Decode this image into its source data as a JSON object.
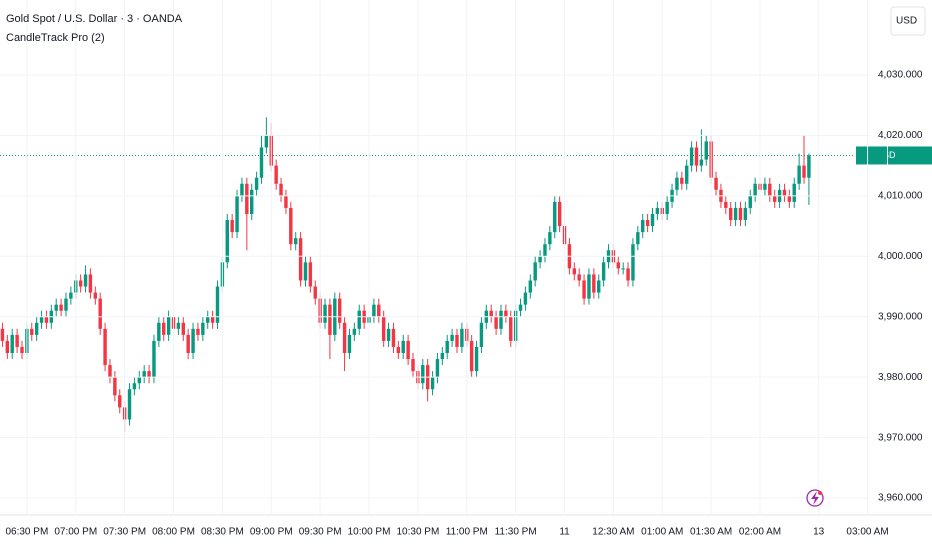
{
  "header": {
    "title": "Gold Spot / U.S. Dollar · 3 · OANDA",
    "indicator": "CandleTrack Pro (2)",
    "currency": "USD"
  },
  "chart_data": {
    "type": "candlestick",
    "up_color": "#089981",
    "down_color": "#f23645",
    "grid": true,
    "ylim": [
      3957.2,
      4042.4
    ],
    "xlim": [
      -0.5,
      177.5
    ],
    "yticks": [
      {
        "value": 3960,
        "label": "3,960.000"
      },
      {
        "value": 3970,
        "label": "3,970.000"
      },
      {
        "value": 3980,
        "label": "3,980.000"
      },
      {
        "value": 3990,
        "label": "3,990.000"
      },
      {
        "value": 4000,
        "label": "4,000.000"
      },
      {
        "value": 4010,
        "label": "4,010.000"
      },
      {
        "value": 4020,
        "label": "4,020.000"
      },
      {
        "value": 4030,
        "label": "4,030.000"
      }
    ],
    "xticks": [
      {
        "value": 5,
        "label": "06:30 PM"
      },
      {
        "value": 15,
        "label": "07:00 PM"
      },
      {
        "value": 25,
        "label": "07:30 PM"
      },
      {
        "value": 35,
        "label": "08:00 PM"
      },
      {
        "value": 45,
        "label": "08:30 PM"
      },
      {
        "value": 55,
        "label": "09:00 PM"
      },
      {
        "value": 65,
        "label": "09:30 PM"
      },
      {
        "value": 75,
        "label": "10:00 PM"
      },
      {
        "value": 85,
        "label": "10:30 PM"
      },
      {
        "value": 95,
        "label": "11:00 PM"
      },
      {
        "value": 105,
        "label": "11:30 PM"
      },
      {
        "value": 115,
        "label": "11"
      },
      {
        "value": 125,
        "label": "12:30 AM"
      },
      {
        "value": 135,
        "label": "01:00 AM"
      },
      {
        "value": 145,
        "label": "01:30 AM"
      },
      {
        "value": 155,
        "label": "02:00 AM"
      },
      {
        "value": 167,
        "label": "13"
      },
      {
        "value": 177,
        "label": "03:00 AM"
      }
    ],
    "last_price": {
      "symbol": "XAUUSD",
      "value": 4016.68,
      "label": "4,016.680"
    },
    "open": [
      3988,
      3986,
      3984,
      3987,
      3985,
      3984,
      3988,
      3987,
      3989,
      3990,
      3989,
      3991,
      3992,
      3991,
      3993,
      3994,
      3996,
      3995,
      3997,
      3994,
      3993,
      3988,
      3982,
      3980,
      3977,
      3975,
      3973,
      3978,
      3979,
      3980,
      3981,
      3980,
      3986,
      3989,
      3987,
      3990,
      3988,
      3989,
      3987,
      3984,
      3988,
      3987,
      3989,
      3990,
      3989,
      3995,
      3999,
      4006,
      4004,
      4010,
      4012,
      4007,
      4011,
      4013,
      4018,
      4020,
      4015,
      4012,
      4010,
      4008,
      4002,
      4003,
      3996,
      3999,
      3995,
      3993,
      3989,
      3992,
      3987,
      3993,
      3989,
      3984,
      3987,
      3988,
      3991,
      3989,
      3990,
      3992,
      3990,
      3986,
      3988,
      3985,
      3984,
      3986,
      3983,
      3981,
      3979,
      3982,
      3978,
      3980,
      3983,
      3984,
      3986,
      3987,
      3985,
      3988,
      3986,
      3981,
      3985,
      3989,
      3991,
      3990,
      3988,
      3991,
      3990,
      3986,
      3991,
      3992,
      3994,
      3996,
      3999,
      4000,
      4002,
      4004,
      4009,
      4005,
      4002,
      3998,
      3997,
      3996,
      3993,
      3997,
      3994,
      3996,
      3999,
      4001,
      3999,
      3998,
      3998,
      3996,
      4002,
      4004,
      4006,
      4005,
      4007,
      4008,
      4007,
      4009,
      4011,
      4013,
      4012,
      4015,
      4018,
      4015,
      4016,
      4019,
      4013,
      4011,
      4009,
      4008,
      4006,
      4008,
      4006,
      4008,
      4010,
      4012,
      4011,
      4012,
      4010,
      4009,
      4011,
      4010,
      4009,
      4012,
      4015,
      4013
    ],
    "high": [
      3989,
      3987,
      3988,
      3988,
      3986,
      3989,
      3989,
      3990,
      3991,
      3991,
      3992,
      3993,
      3993,
      3994,
      3995,
      3997,
      3997,
      3998.5,
      3998,
      3995,
      3994,
      3989,
      3983,
      3981,
      3978,
      3976,
      3979,
      3980,
      3981,
      3982,
      3982,
      3987,
      3990,
      3990,
      3991,
      3991,
      3990,
      3990,
      3988,
      3989,
      3989,
      3990,
      3991,
      3991,
      3996,
      4000,
      4007,
      4007,
      4011,
      4013,
      4013,
      4012,
      4014,
      4020,
      4023,
      4022,
      4016,
      4013,
      4011,
      4009,
      4004,
      4004,
      4000,
      4000,
      3996,
      3994,
      3993,
      3993,
      3994,
      3994,
      3990,
      3988,
      3989,
      3992,
      3992,
      3991,
      3993,
      3993,
      3991,
      3989,
      3989,
      3986,
      3987,
      3987,
      3984,
      3982,
      3983,
      3983,
      3981,
      3984,
      3985,
      3987,
      3988,
      3988,
      3989,
      3989,
      3987,
      3986,
      3990,
      3992,
      3992,
      3991,
      3992,
      3992,
      3991,
      3992,
      3993,
      3995,
      3997,
      4000,
      4001,
      4003,
      4005,
      4010,
      4010,
      4006,
      4003,
      3999,
      3998,
      3997,
      3998,
      3998,
      3997,
      4000,
      4002,
      4002,
      4000,
      3999,
      3999,
      4003,
      4005,
      4007,
      4007,
      4008,
      4009,
      4009,
      4010,
      4012,
      4014,
      4014,
      4016,
      4019,
      4019,
      4021,
      4020,
      4020,
      4014,
      4012,
      4010,
      4009,
      4009,
      4009,
      4009,
      4011,
      4013,
      4013,
      4013,
      4013,
      4011,
      4012,
      4012,
      4011,
      4013,
      4017,
      4020,
      4017
    ],
    "low": [
      3985,
      3983,
      3983,
      3984,
      3983,
      3983,
      3986,
      3986,
      3988,
      3988,
      3988,
      3990,
      3990,
      3990,
      3992,
      3993,
      3994,
      3994,
      3993,
      3992,
      3987,
      3981,
      3979,
      3976,
      3974,
      3971,
      3972,
      3977,
      3978,
      3979,
      3979,
      3979,
      3985,
      3986,
      3986,
      3987,
      3987,
      3986,
      3983,
      3983,
      3986,
      3986,
      3988,
      3988,
      3988,
      3994,
      3998,
      4003,
      4003,
      4009,
      4001,
      4006,
      4010,
      4012,
      4017,
      4014,
      4011,
      4009,
      4007,
      4001,
      4001,
      3995,
      3995,
      3994,
      3992,
      3988,
      3988,
      3983,
      3986,
      3988,
      3981,
      3983,
      3986,
      3987,
      3988,
      3988,
      3989,
      3989,
      3985,
      3985,
      3984,
      3983,
      3983,
      3982,
      3980,
      3978,
      3978,
      3976,
      3977,
      3979,
      3982,
      3983,
      3985,
      3984,
      3984,
      3985,
      3980,
      3980,
      3984,
      3988,
      3989,
      3987,
      3987,
      3989,
      3985,
      3985,
      3990,
      3991,
      3993,
      3995,
      3998,
      3999,
      4001,
      4003,
      4004,
      4001,
      3997,
      3996,
      3995,
      3992,
      3992,
      3993,
      3993,
      3995,
      3998,
      3998,
      3997,
      3997,
      3995,
      3995,
      4001,
      4003,
      4004,
      4004,
      4006,
      4006,
      4006,
      4008,
      4010,
      4011,
      4011,
      4014,
      4014,
      4014,
      4015,
      4012,
      4010,
      4008,
      4007,
      4005,
      4005,
      4005,
      4005,
      4007,
      4009,
      4010,
      4010,
      4009,
      4008,
      4008,
      4009,
      4008,
      4008,
      4011,
      4012,
      4008.5
    ],
    "close": [
      3986,
      3984,
      3987,
      3985,
      3984,
      3988,
      3987,
      3989,
      3990,
      3989,
      3991,
      3992,
      3991,
      3993,
      3994,
      3996,
      3995,
      3997,
      3994,
      3993,
      3988,
      3982,
      3980,
      3977,
      3975,
      3973,
      3978,
      3979,
      3980,
      3981,
      3980,
      3986,
      3989,
      3987,
      3990,
      3988,
      3989,
      3987,
      3984,
      3988,
      3987,
      3989,
      3990,
      3989,
      3995,
      3999,
      4006,
      4004,
      4010,
      4012,
      4007,
      4011,
      4013,
      4018,
      4020,
      4015,
      4012,
      4010,
      4008,
      4002,
      4003,
      3996,
      3999,
      3995,
      3993,
      3989,
      3992,
      3987,
      3993,
      3989,
      3984,
      3987,
      3988,
      3991,
      3989,
      3990,
      3992,
      3990,
      3986,
      3988,
      3985,
      3984,
      3986,
      3983,
      3981,
      3979,
      3982,
      3978,
      3980,
      3983,
      3984,
      3986,
      3987,
      3985,
      3988,
      3986,
      3981,
      3985,
      3989,
      3991,
      3990,
      3988,
      3991,
      3990,
      3986,
      3991,
      3992,
      3994,
      3996,
      3999,
      4000,
      4002,
      4004,
      4009,
      4005,
      4002,
      3998,
      3997,
      3996,
      3993,
      3997,
      3994,
      3996,
      3999,
      4001,
      3999,
      3998,
      3998,
      3996,
      4002,
      4004,
      4006,
      4005,
      4007,
      4008,
      4007,
      4009,
      4011,
      4013,
      4012,
      4015,
      4018,
      4015,
      4016,
      4019,
      4013,
      4011,
      4009,
      4008,
      4006,
      4008,
      4006,
      4008,
      4010,
      4012,
      4011,
      4012,
      4010,
      4009,
      4011,
      4010,
      4009,
      4012,
      4015,
      4013,
      4016.68
    ]
  }
}
